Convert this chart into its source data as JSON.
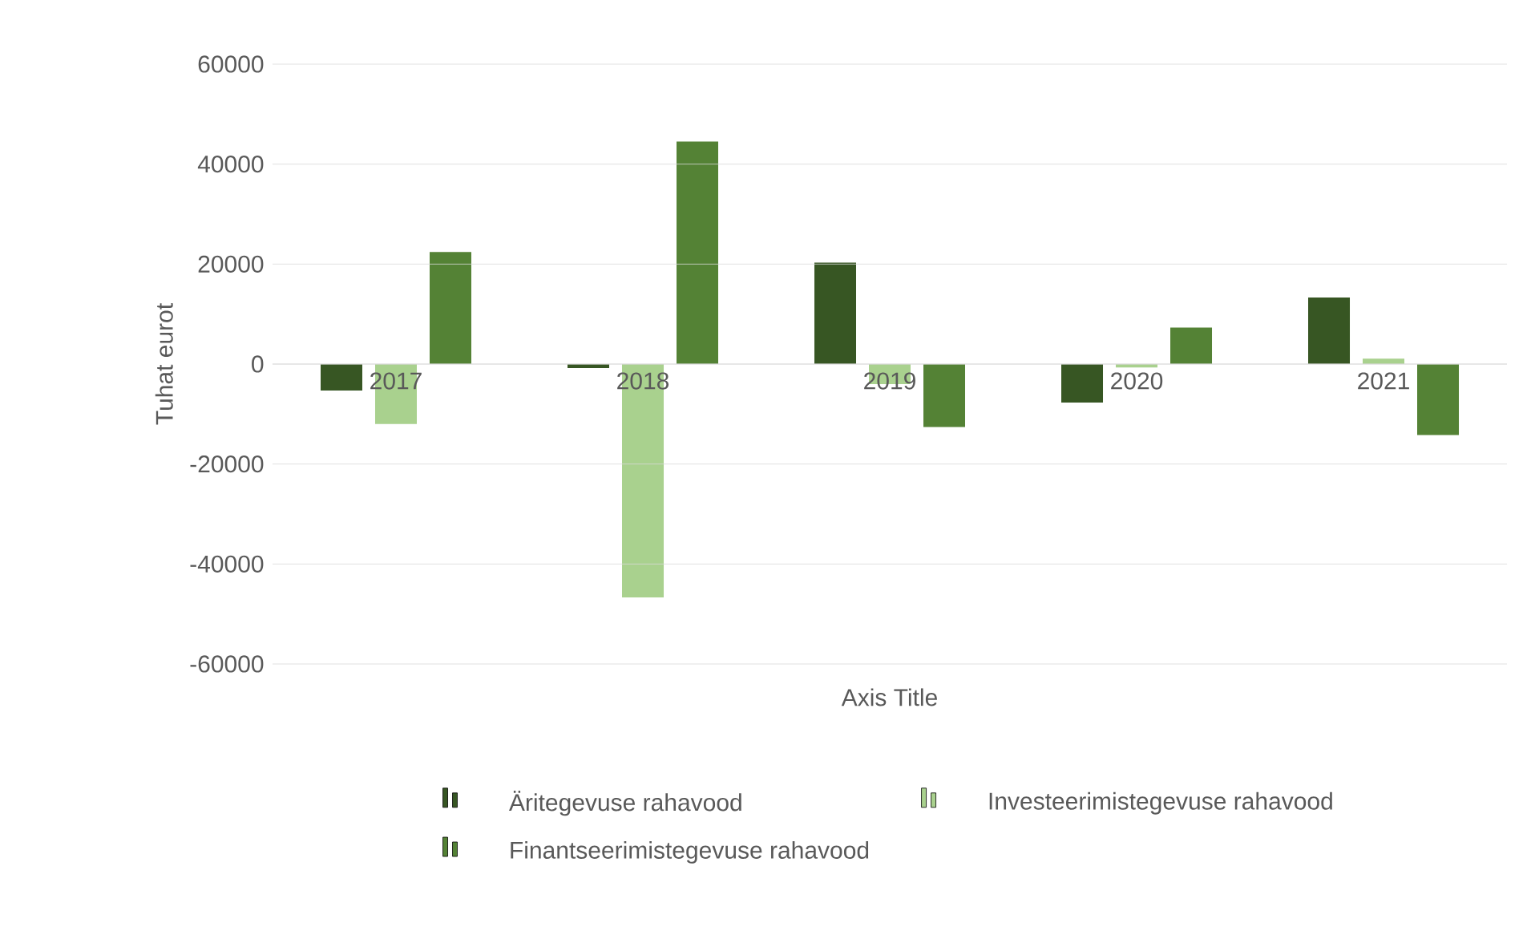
{
  "chart_data": {
    "type": "bar",
    "xlabel": "Axis Title",
    "ylabel": "Tuhat eurot",
    "categories": [
      "2017",
      "2018",
      "2019",
      "2020",
      "2021"
    ],
    "series": [
      {
        "name": "Äritegevuse rahavood",
        "color": "#375623",
        "values": [
          -5300,
          -800,
          20300,
          -7700,
          13300
        ]
      },
      {
        "name": "Investeerimistegevuse rahavood",
        "color": "#a9d18e",
        "values": [
          -12000,
          -46700,
          -4000,
          -700,
          1100
        ]
      },
      {
        "name": "Finantseerimistegevuse rahavood",
        "color": "#548235",
        "values": [
          22400,
          44500,
          -12600,
          7300,
          -14200
        ]
      }
    ],
    "ylim": [
      -60000,
      60000
    ],
    "yticks": [
      -60000,
      -40000,
      -20000,
      0,
      20000,
      40000,
      60000
    ],
    "grid": "y",
    "legend": "bottom"
  }
}
